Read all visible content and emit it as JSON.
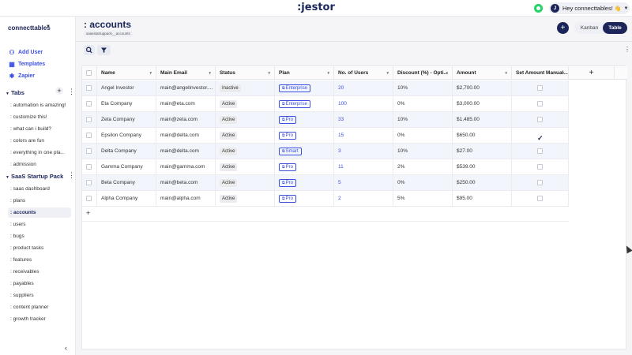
{
  "app": {
    "logo": ":jestor",
    "greeting": "Hey connecttables!",
    "avatar_initial": "J",
    "wave_emoji": "👋"
  },
  "sidebar": {
    "workspace": "connecttables",
    "actions": [
      {
        "label": "Add User",
        "icon": "add-user-icon"
      },
      {
        "label": "Templates",
        "icon": "templates-icon"
      },
      {
        "label": "Zapier",
        "icon": "zapier-icon"
      }
    ],
    "tabs_section": "Tabs",
    "tabs": [
      ": automation is amazing!",
      ": customize this!",
      ": what can i build?",
      ": colors are fun",
      ": everything in one pla...",
      ": admission"
    ],
    "pack_section": "SaaS Startup Pack",
    "pack_items": [
      ": saas dashboard",
      ": plans",
      ": accounts",
      ": users",
      ": bugs",
      ": product tasks",
      ": features",
      ": receivables",
      ": payables",
      ": suppliers",
      ": content planner",
      ": growth tracker"
    ],
    "active_item": ": accounts"
  },
  "header": {
    "title": ": accounts",
    "slug": "saasstartuppack__accounts",
    "view_kanban": "Kanban",
    "view_table": "Table",
    "active_view": "Table"
  },
  "table": {
    "columns": [
      "Name",
      "Main Email",
      "Status",
      "Plan",
      "No. of Users",
      "Discount (%) - Opti...",
      "Amount",
      "Set Amount Manual..."
    ],
    "rows": [
      {
        "name": "Angel Investor",
        "email": "main@angelinvestor....",
        "status": "Inactive",
        "plan": "Enterprise",
        "users": "20",
        "discount": "10%",
        "amount": "$2,700.00",
        "manual": false
      },
      {
        "name": "Eta Company",
        "email": "main@eta.com",
        "status": "Active",
        "plan": "Enterprise",
        "users": "100",
        "discount": "0%",
        "amount": "$3,000.00",
        "manual": false
      },
      {
        "name": "Zeta Company",
        "email": "main@zeta.com",
        "status": "Active",
        "plan": "Pro",
        "users": "33",
        "discount": "10%",
        "amount": "$1,485.00",
        "manual": false
      },
      {
        "name": "Epsilon Company",
        "email": "main@delta.com",
        "status": "Active",
        "plan": "Pro",
        "users": "15",
        "discount": "0%",
        "amount": "$650.00",
        "manual": true
      },
      {
        "name": "Delta Company",
        "email": "main@delta.com",
        "status": "Active",
        "plan": "Smart",
        "users": "3",
        "discount": "10%",
        "amount": "$27.00",
        "manual": false
      },
      {
        "name": "Gamma Company",
        "email": "main@gamma.com",
        "status": "Active",
        "plan": "Pro",
        "users": "11",
        "discount": "2%",
        "amount": "$539.00",
        "manual": false
      },
      {
        "name": "Beta Company",
        "email": "main@beta.com",
        "status": "Active",
        "plan": "Pro",
        "users": "5",
        "discount": "0%",
        "amount": "$250.00",
        "manual": false
      },
      {
        "name": "Alpha Company",
        "email": "main@alpha.com",
        "status": "Active",
        "plan": "Pro",
        "users": "2",
        "discount": "5%",
        "amount": "$95.00",
        "manual": false
      }
    ]
  },
  "colors": {
    "brand": "#1b2559",
    "accent": "#3c50e0",
    "row_alt": "#f3f5fd"
  }
}
